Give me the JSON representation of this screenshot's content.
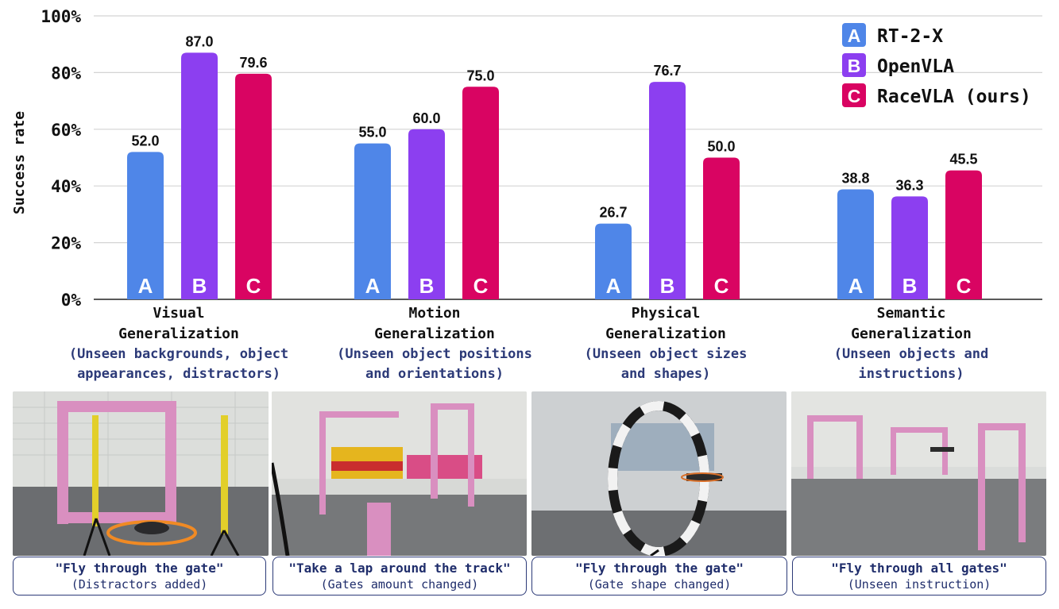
{
  "chart_data": {
    "type": "bar",
    "ylabel": "Success rate",
    "ylim": [
      0,
      100
    ],
    "yticks": [
      "0%",
      "20%",
      "40%",
      "60%",
      "80%",
      "100%"
    ],
    "grid": true,
    "legend_position": "top-right",
    "categories": [
      {
        "title_line1": "Visual",
        "title_line2": "Generalization",
        "sub_line1": "(Unseen backgrounds, object",
        "sub_line2": "appearances, distractors)"
      },
      {
        "title_line1": "Motion",
        "title_line2": "Generalization",
        "sub_line1": "(Unseen object positions",
        "sub_line2": "and orientations)"
      },
      {
        "title_line1": "Physical",
        "title_line2": "Generalization",
        "sub_line1": "(Unseen object sizes",
        "sub_line2": "and shapes)"
      },
      {
        "title_line1": "Semantic",
        "title_line2": "Generalization",
        "sub_line1": "(Unseen objects and",
        "sub_line2": "instructions)"
      }
    ],
    "series": [
      {
        "key": "A",
        "name": "RT-2-X",
        "color": "#4f86e8",
        "values": [
          52.0,
          55.0,
          26.7,
          38.8
        ],
        "labels": [
          "52.0",
          "55.0",
          "26.7",
          "38.8"
        ]
      },
      {
        "key": "B",
        "name": "OpenVLA",
        "color": "#8c3ff0",
        "values": [
          87.0,
          60.0,
          76.7,
          36.3
        ],
        "labels": [
          "87.0",
          "60.0",
          "76.7",
          "36.3"
        ]
      },
      {
        "key": "C",
        "name": "RaceVLA (ours)",
        "color": "#d90462",
        "values": [
          79.6,
          75.0,
          50.0,
          45.5
        ],
        "labels": [
          "79.6",
          "75.0",
          "50.0",
          "45.5"
        ]
      }
    ]
  },
  "panels": [
    {
      "instruction": "\"Fly through the gate\"",
      "note": "(Distractors added)"
    },
    {
      "instruction": "\"Take a lap around the track\"",
      "note": "(Gates amount changed)"
    },
    {
      "instruction": "\"Fly through the gate\"",
      "note": "(Gate shape changed)"
    },
    {
      "instruction": "\"Fly through all gates\"",
      "note": "(Unseen instruction)"
    }
  ]
}
